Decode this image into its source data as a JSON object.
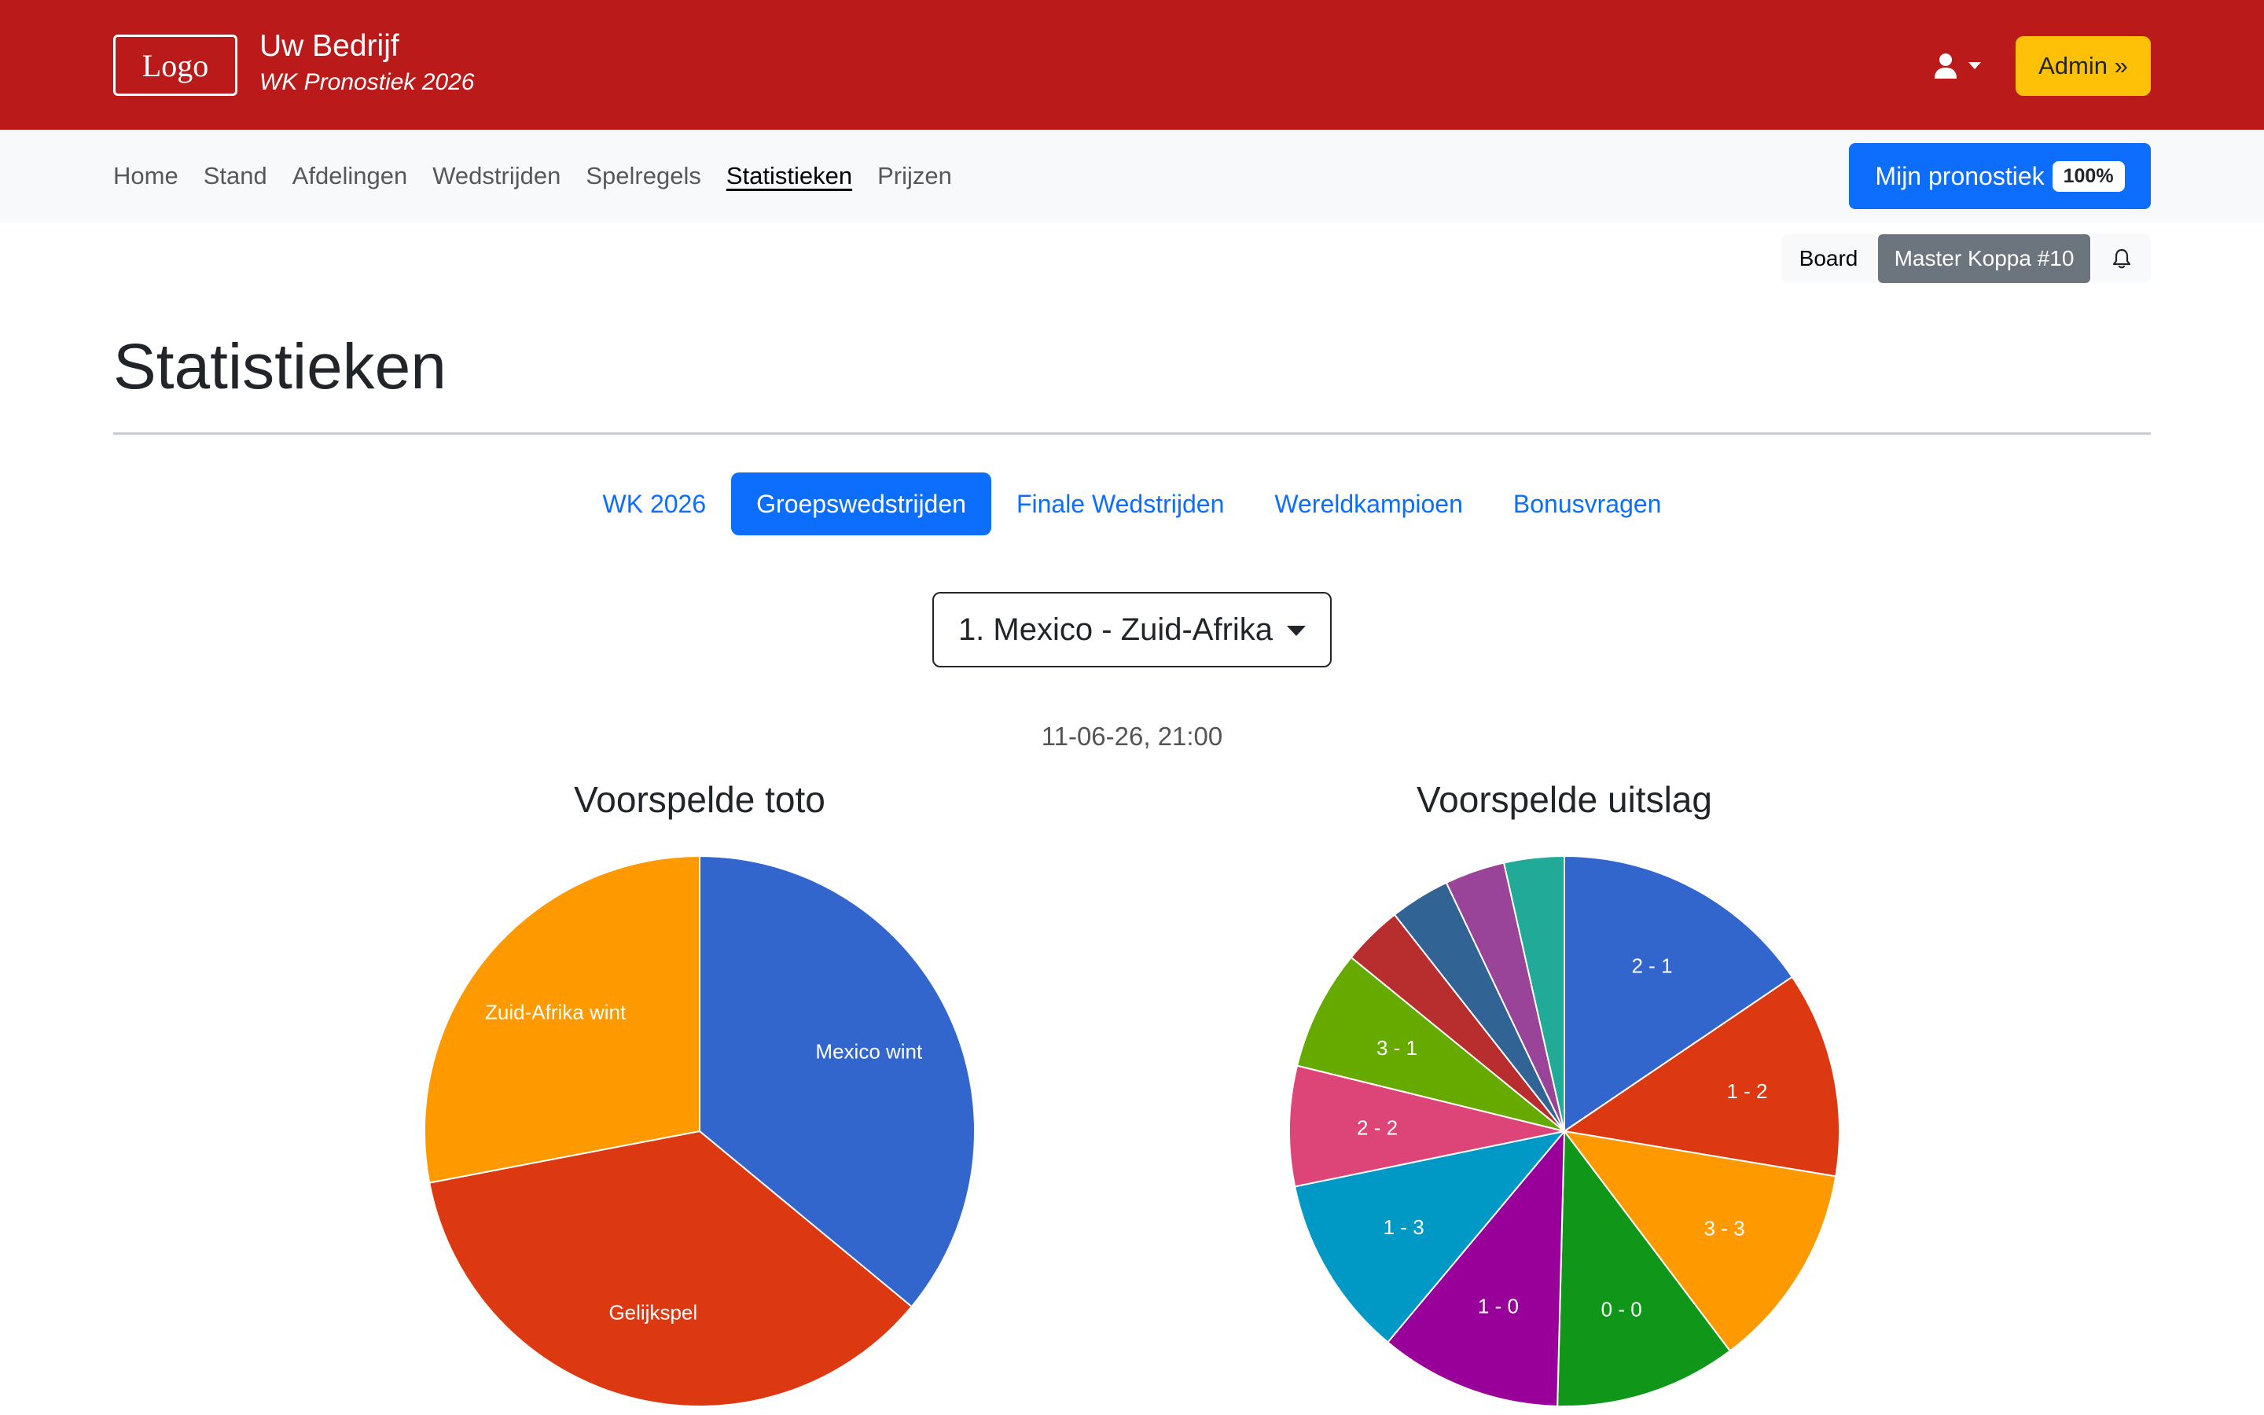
{
  "header": {
    "logo_text": "Logo",
    "company": "Uw Bedrijf",
    "subtitle": "WK Pronostiek 2026",
    "admin_label": "Admin »"
  },
  "nav": {
    "items": [
      "Home",
      "Stand",
      "Afdelingen",
      "Wedstrijden",
      "Spelregels",
      "Statistieken",
      "Prijzen"
    ],
    "active": "Statistieken",
    "mijn_label": "Mijn pronostiek",
    "mijn_badge": "100%"
  },
  "toolbar": {
    "board_label": "Board",
    "master_label": "Master Koppa #10"
  },
  "page": {
    "title": "Statistieken"
  },
  "tabs": {
    "items": [
      "WK 2026",
      "Groepswedstrijden",
      "Finale Wedstrijden",
      "Wereldkampioen",
      "Bonusvragen"
    ],
    "active": "Groepswedstrijden"
  },
  "match": {
    "selected": "1. Mexico - Zuid-Afrika",
    "datetime": "11-06-26, 21:00"
  },
  "colors": {
    "header_red": "#bb1a1b",
    "primary": "#0d6efd",
    "admin_yellow": "#ffc107"
  },
  "chart_data": [
    {
      "type": "pie",
      "title": "Voorspelde toto",
      "labels": [
        "Mexico wint",
        "Gelijkspel",
        "Zuid-Afrika wint"
      ],
      "values": [
        36,
        36,
        28
      ],
      "colors": [
        "#3366cc",
        "#dc3912",
        "#ff9900"
      ],
      "slice_labels": [
        "Mexico wint",
        "Gelijkspel",
        "Zuid-Afrika wint"
      ]
    },
    {
      "type": "pie",
      "title": "Voorspelde uitslag",
      "labels": [
        "2 - 1",
        "1 - 2",
        "3 - 3",
        "0 - 0",
        "1 - 0",
        "1 - 3",
        "2 - 2",
        "3 - 1",
        "",
        "",
        "",
        ""
      ],
      "values": [
        15.4,
        12.0,
        12.0,
        10.6,
        10.6,
        10.6,
        7.0,
        7.0,
        3.5,
        3.5,
        3.5,
        3.5
      ],
      "colors": [
        "#3366cc",
        "#dc3912",
        "#ff9900",
        "#109618",
        "#990099",
        "#0099c6",
        "#dd4477",
        "#66aa00",
        "#b82e2e",
        "#316395",
        "#994499",
        "#22aa99"
      ]
    }
  ]
}
